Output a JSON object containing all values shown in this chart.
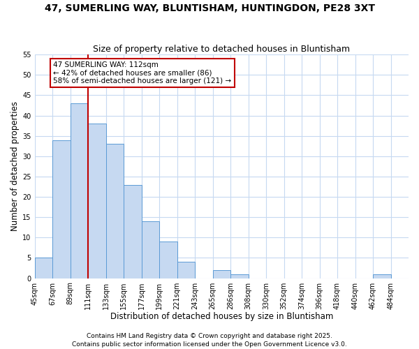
{
  "title": "47, SUMERLING WAY, BLUNTISHAM, HUNTINGDON, PE28 3XT",
  "subtitle": "Size of property relative to detached houses in Bluntisham",
  "xlabel": "Distribution of detached houses by size in Bluntisham",
  "ylabel": "Number of detached properties",
  "bin_labels": [
    "45sqm",
    "67sqm",
    "89sqm",
    "111sqm",
    "133sqm",
    "155sqm",
    "177sqm",
    "199sqm",
    "221sqm",
    "243sqm",
    "265sqm",
    "286sqm",
    "308sqm",
    "330sqm",
    "352sqm",
    "374sqm",
    "396sqm",
    "418sqm",
    "440sqm",
    "462sqm",
    "484sqm"
  ],
  "bar_values": [
    5,
    34,
    43,
    38,
    33,
    23,
    14,
    9,
    4,
    0,
    2,
    1,
    0,
    0,
    0,
    0,
    0,
    0,
    0,
    1,
    0
  ],
  "bar_color": "#c6d9f1",
  "bar_edge_color": "#5b9bd5",
  "vline_x": 3,
  "vline_color": "#c00000",
  "annotation_line1": "47 SUMERLING WAY: 112sqm",
  "annotation_line2": "← 42% of detached houses are smaller (86)",
  "annotation_line3": "58% of semi-detached houses are larger (121) →",
  "annotation_box_edge": "#c00000",
  "ylim": [
    0,
    55
  ],
  "yticks": [
    0,
    5,
    10,
    15,
    20,
    25,
    30,
    35,
    40,
    45,
    50,
    55
  ],
  "grid_color": "#c6d9f1",
  "footnote1": "Contains HM Land Registry data © Crown copyright and database right 2025.",
  "footnote2": "Contains public sector information licensed under the Open Government Licence v3.0.",
  "title_fontsize": 10,
  "subtitle_fontsize": 9,
  "xlabel_fontsize": 8.5,
  "ylabel_fontsize": 8.5,
  "tick_fontsize": 7,
  "annotation_fontsize": 7.5,
  "footnote_fontsize": 6.5
}
